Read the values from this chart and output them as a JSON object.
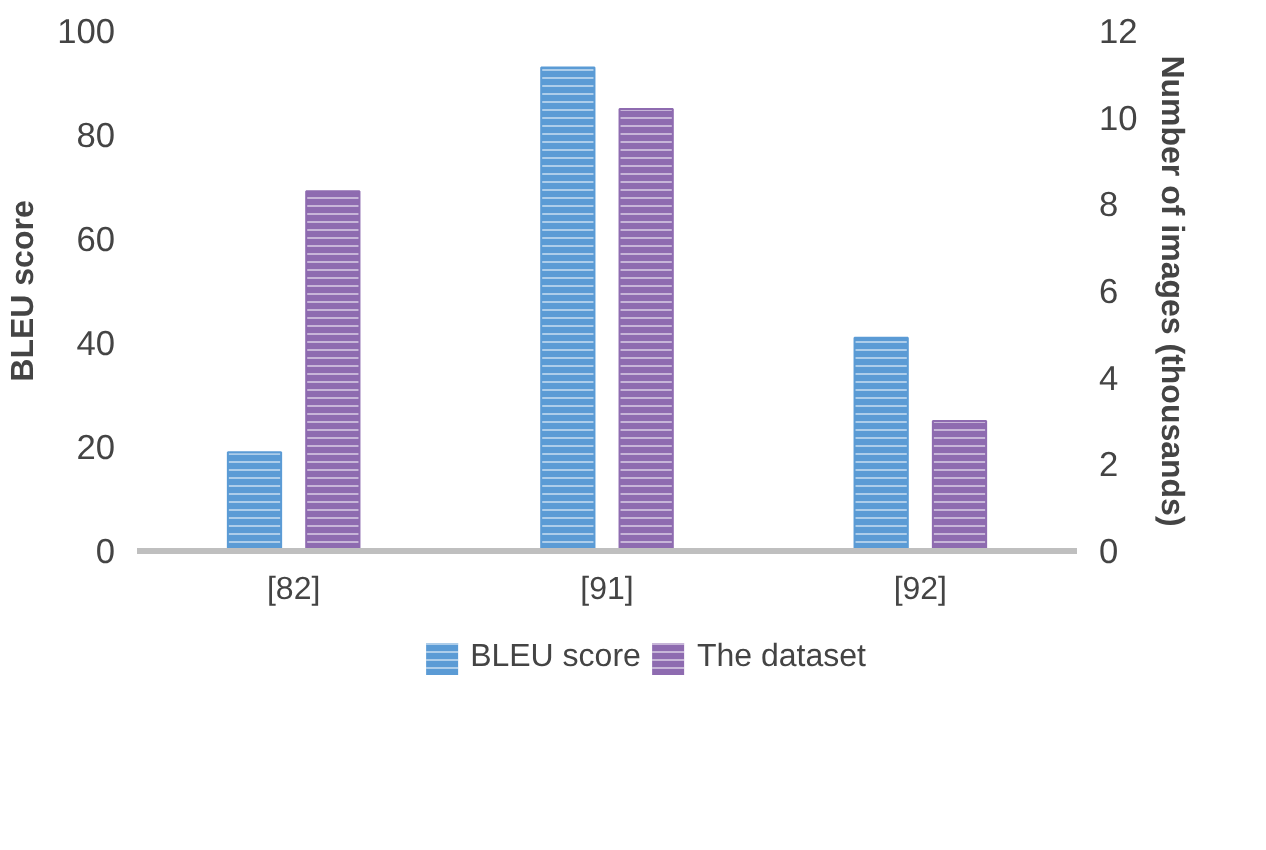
{
  "chart_data": {
    "type": "bar",
    "ylabel": "BLEU score",
    "y2label": "Number of images (thousands)",
    "categories": [
      "[82]",
      "[91]",
      "[92]"
    ],
    "series": [
      {
        "name": "BLEU score",
        "color": "#5b9bd5",
        "values": [
          19,
          93,
          41
        ]
      },
      {
        "name": "The dataset",
        "color": "#8e6bb0",
        "values": [
          8.3,
          10.2,
          3.0
        ],
        "axis": "y2"
      }
    ],
    "ylim": [
      0,
      100
    ],
    "yticks": [
      0,
      20,
      40,
      60,
      80,
      100
    ],
    "y2lim": [
      0,
      12
    ],
    "y2ticks": [
      0,
      2,
      4,
      6,
      8,
      10,
      12
    ],
    "grid": false,
    "legend": "bottom"
  }
}
